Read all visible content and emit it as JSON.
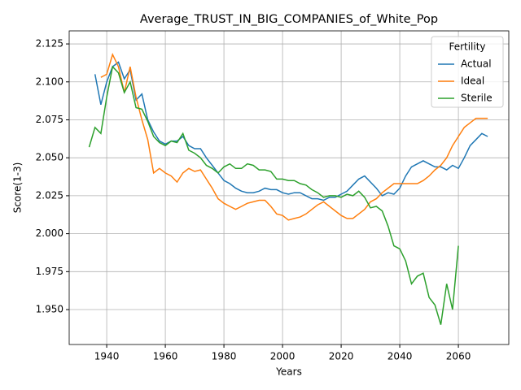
{
  "chart_data": {
    "type": "line",
    "title": "Average_TRUST_IN_BIG_COMPANIES_of_White_Pop",
    "x_label": "Years",
    "y_label": "Score(1-3)",
    "legend_title": "Fertility",
    "legend": "upper right",
    "grid": true,
    "x": [
      1934,
      1936,
      1938,
      1940,
      1942,
      1944,
      1946,
      1948,
      1950,
      1952,
      1954,
      1956,
      1958,
      1960,
      1962,
      1964,
      1966,
      1968,
      1970,
      1972,
      1974,
      1976,
      1978,
      1980,
      1982,
      1984,
      1986,
      1988,
      1990,
      1992,
      1994,
      1996,
      1998,
      2000,
      2002,
      2004,
      2006,
      2008,
      2010,
      2012,
      2014,
      2016,
      2018,
      2020,
      2022,
      2024,
      2026,
      2028,
      2030,
      2032,
      2034,
      2036,
      2038,
      2040,
      2042,
      2044,
      2046,
      2048,
      2050,
      2052,
      2054,
      2056,
      2058,
      2060,
      2062,
      2064,
      2066,
      2068,
      2070
    ],
    "series": [
      {
        "name": "Actual",
        "color": "#1f77b4",
        "values": [
          null,
          2.105,
          2.085,
          2.1,
          2.11,
          2.113,
          2.102,
          2.108,
          2.088,
          2.092,
          2.075,
          2.067,
          2.061,
          2.059,
          2.061,
          2.061,
          2.064,
          2.058,
          2.056,
          2.056,
          2.05,
          2.045,
          2.04,
          2.035,
          2.033,
          2.03,
          2.028,
          2.027,
          2.027,
          2.028,
          2.03,
          2.029,
          2.029,
          2.027,
          2.026,
          2.027,
          2.027,
          2.025,
          2.023,
          2.023,
          2.022,
          2.024,
          2.024,
          2.026,
          2.028,
          2.032,
          2.036,
          2.038,
          2.034,
          2.03,
          2.025,
          2.027,
          2.026,
          2.03,
          2.038,
          2.044,
          2.046,
          2.048,
          2.046,
          2.044,
          2.044,
          2.042,
          2.045,
          2.043,
          2.05,
          2.058,
          2.062,
          2.066,
          2.064
        ]
      },
      {
        "name": "Ideal",
        "color": "#ff7f0e",
        "values": [
          null,
          null,
          2.103,
          2.105,
          2.118,
          2.11,
          2.093,
          2.11,
          2.09,
          2.075,
          2.062,
          2.04,
          2.043,
          2.04,
          2.038,
          2.034,
          2.04,
          2.043,
          2.041,
          2.042,
          2.036,
          2.03,
          2.023,
          2.02,
          2.018,
          2.016,
          2.018,
          2.02,
          2.021,
          2.022,
          2.022,
          2.018,
          2.013,
          2.012,
          2.009,
          2.01,
          2.011,
          2.013,
          2.016,
          2.019,
          2.021,
          2.018,
          2.015,
          2.012,
          2.01,
          2.01,
          2.013,
          2.016,
          2.021,
          2.023,
          2.027,
          2.03,
          2.033,
          2.033,
          2.033,
          2.033,
          2.033,
          2.035,
          2.038,
          2.042,
          2.045,
          2.05,
          2.058,
          2.064,
          2.07,
          2.073,
          2.076,
          2.076,
          2.076
        ]
      },
      {
        "name": "Sterile",
        "color": "#2ca02c",
        "values": [
          2.057,
          2.07,
          2.066,
          2.09,
          2.11,
          2.106,
          2.093,
          2.1,
          2.083,
          2.082,
          2.074,
          2.064,
          2.06,
          2.058,
          2.061,
          2.06,
          2.066,
          2.055,
          2.053,
          2.05,
          2.045,
          2.043,
          2.04,
          2.044,
          2.046,
          2.043,
          2.043,
          2.046,
          2.045,
          2.042,
          2.042,
          2.041,
          2.036,
          2.036,
          2.035,
          2.035,
          2.033,
          2.032,
          2.029,
          2.027,
          2.024,
          2.025,
          2.025,
          2.024,
          2.026,
          2.025,
          2.028,
          2.024,
          2.017,
          2.018,
          2.015,
          2.005,
          1.992,
          1.99,
          1.982,
          1.967,
          1.972,
          1.974,
          1.958,
          1.953,
          1.94,
          1.967,
          1.95,
          1.992,
          null,
          null,
          null,
          null,
          null
        ]
      }
    ],
    "xlim": [
      1927.2,
      2077.2
    ],
    "xticks": [
      1940,
      1960,
      1980,
      2000,
      2020,
      2040,
      2060
    ],
    "ylim": [
      1.927,
      2.1336
    ],
    "yticks": [
      {
        "value": 1.95,
        "label": "1.950"
      },
      1.975,
      {
        "value": 2.0,
        "label": "2.000"
      },
      2.025,
      {
        "value": 2.05,
        "label": "2.050"
      },
      2.075,
      {
        "value": 2.1,
        "label": "2.100"
      },
      2.125
    ]
  }
}
